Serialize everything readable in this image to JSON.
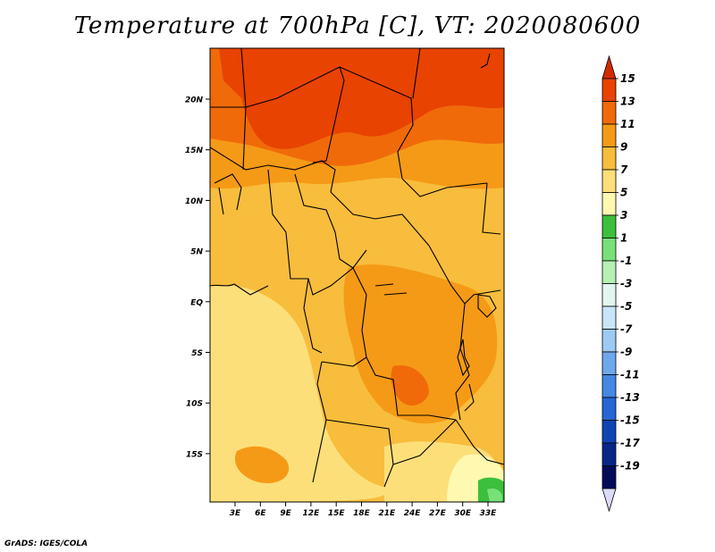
{
  "title": "Temperature at 700hPa [C], VT: 2020080600",
  "credit": "GrADS: IGES/COLA",
  "map": {
    "lat_labels": [
      "20N",
      "15N",
      "10N",
      "5N",
      "EQ",
      "5S",
      "10S",
      "15S"
    ],
    "lon_labels": [
      "3E",
      "6E",
      "9E",
      "12E",
      "15E",
      "18E",
      "21E",
      "24E",
      "27E",
      "30E",
      "33E"
    ]
  },
  "colorbar": {
    "labels": [
      "15",
      "13",
      "11",
      "9",
      "7",
      "5",
      "3",
      "1",
      "-1",
      "-3",
      "-5",
      "-7",
      "-9",
      "-11",
      "-13",
      "-15",
      "-17",
      "-19"
    ],
    "colors": [
      "#d42a00",
      "#e84300",
      "#f06a0a",
      "#f59a16",
      "#f8bd3c",
      "#fddf7a",
      "#fff8b0",
      "#3cbf3c",
      "#78e078",
      "#b6f0b2",
      "#e2f6ee",
      "#c8e6f8",
      "#9ccaf4",
      "#6ea8ec",
      "#4488e4",
      "#2466d4",
      "#0e44b4",
      "#062688",
      "#020a5a",
      "#dcdcf8"
    ]
  },
  "legend": {
    "top_arrow_color": "#d42a00",
    "bottom_arrow_color": "#dcdcf8"
  }
}
